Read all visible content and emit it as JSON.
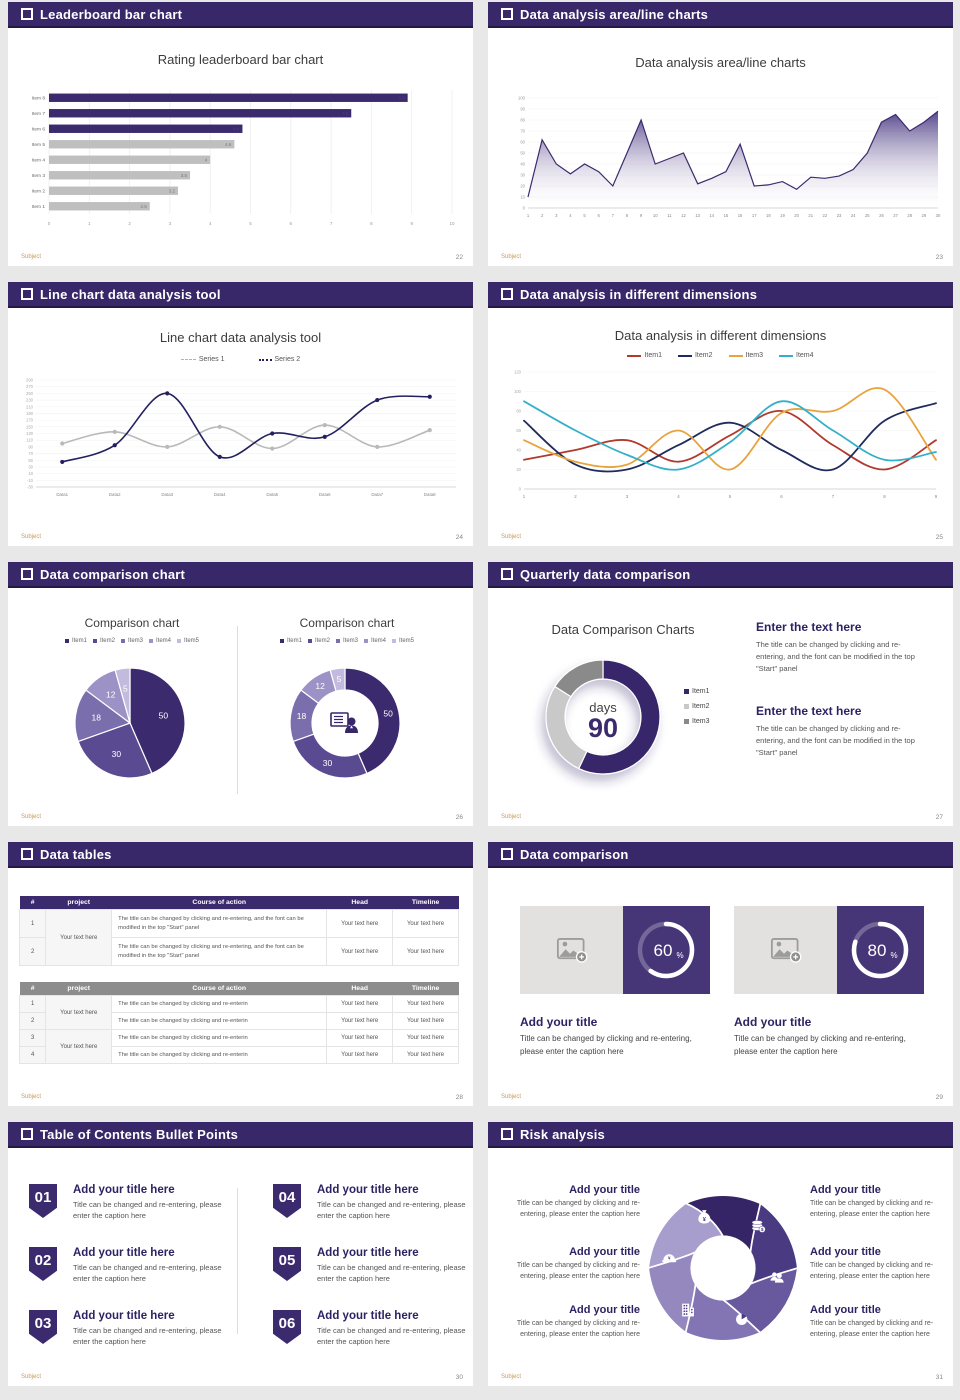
{
  "page": {
    "bg": "#e9e8e8",
    "accent": "#382769",
    "logo": "Subject"
  },
  "slides": [
    {
      "header": "Leaderboard bar chart",
      "page_num": "22",
      "title": "Rating leaderboard bar chart",
      "chart": {
        "type": "hbar",
        "categories": [
          "Item 1",
          "Item 2",
          "Item 3",
          "Item 4",
          "Item 5",
          "Item 6",
          "Item 7",
          "Item 8"
        ],
        "values": [
          2.5,
          3.2,
          3.5,
          4,
          4.6,
          4.8,
          7.5,
          8.9
        ],
        "bar_colors": [
          "#bfbfbf",
          "#bfbfbf",
          "#bfbfbf",
          "#bfbfbf",
          "#bfbfbf",
          "#3b2a6e",
          "#3b2a6e",
          "#3b2a6e"
        ],
        "xlim": [
          0,
          10
        ],
        "xticks": [
          0,
          1,
          2,
          3,
          4,
          5,
          6,
          7,
          8,
          9,
          10
        ]
      }
    },
    {
      "header": "Data analysis area/line charts",
      "page_num": "23",
      "title": "Data analysis area/line charts",
      "chart": {
        "type": "area",
        "x": [
          1,
          2,
          3,
          4,
          5,
          6,
          7,
          8,
          9,
          10,
          11,
          12,
          13,
          14,
          15,
          16,
          17,
          18,
          19,
          20,
          21,
          22,
          23,
          24,
          25,
          26,
          27,
          28,
          29,
          30
        ],
        "values": [
          10,
          62,
          40,
          31,
          40,
          33,
          20,
          50,
          80,
          40,
          45,
          50,
          22,
          27,
          33,
          58,
          20,
          21,
          24,
          17,
          28,
          27,
          29,
          35,
          50,
          78,
          85,
          70,
          78,
          88
        ],
        "ylim": [
          0,
          100
        ],
        "yticks": [
          0,
          10,
          20,
          30,
          40,
          50,
          60,
          70,
          80,
          90,
          100
        ],
        "line_color": "#3b2a6e"
      }
    },
    {
      "header": "Line chart data analysis tool",
      "page_num": "24",
      "title": "Line chart data analysis tool",
      "legend": [
        {
          "label": "Series 1"
        },
        {
          "label": "Series 2"
        }
      ],
      "chart": {
        "type": "line",
        "categories": [
          "Data1",
          "Data2",
          "Data3",
          "Data4",
          "Data5",
          "Data6",
          "Data7",
          "Data8"
        ],
        "ylim": [
          -30,
          290
        ],
        "yticks": [
          290,
          270,
          250,
          230,
          210,
          190,
          170,
          150,
          130,
          110,
          90,
          70,
          50,
          30,
          10,
          -10,
          -30
        ],
        "series": [
          {
            "name": "Series 1",
            "color": "#b9b9b9",
            "values": [
              100,
              135,
              90,
              150,
              85,
              155,
              90,
              140
            ]
          },
          {
            "name": "Series 2",
            "color": "#23205f",
            "values": [
              45,
              95,
              250,
              60,
              130,
              120,
              230,
              240
            ]
          }
        ]
      }
    },
    {
      "header": "Data analysis in different dimensions",
      "page_num": "25",
      "title": "Data analysis in different dimensions",
      "chart": {
        "type": "line",
        "categories": [
          "1",
          "2",
          "3",
          "4",
          "5",
          "6",
          "7",
          "8",
          "9"
        ],
        "ylim": [
          0,
          120
        ],
        "yticks": [
          0,
          20,
          40,
          60,
          80,
          100,
          120
        ],
        "series": [
          {
            "name": "Item1",
            "color": "#b03a2e",
            "values": [
              30,
              40,
              50,
              28,
              55,
              80,
              45,
              20,
              50
            ]
          },
          {
            "name": "Item2",
            "color": "#1f2a5e",
            "values": [
              70,
              25,
              20,
              45,
              68,
              40,
              20,
              70,
              88
            ]
          },
          {
            "name": "Item3",
            "color": "#e8a33d",
            "values": [
              50,
              28,
              25,
              60,
              20,
              78,
              80,
              102,
              30
            ]
          },
          {
            "name": "Item4",
            "color": "#35b0c9",
            "values": [
              90,
              60,
              35,
              20,
              48,
              90,
              60,
              30,
              38
            ]
          }
        ]
      }
    },
    {
      "header": "Data comparison chart",
      "page_num": "26",
      "panel_title_left": "Comparison chart",
      "panel_title_right": "Comparison chart",
      "legend": [
        "Item1",
        "Item2",
        "Item3",
        "Item4",
        "Item5"
      ],
      "chart": {
        "type": "pie",
        "labels": [
          "Item1",
          "Item2",
          "Item3",
          "Item4",
          "Item5"
        ],
        "values": [
          50,
          30,
          18,
          12,
          5
        ],
        "colors": [
          "#3b2a6e",
          "#5a4a91",
          "#7b6ead",
          "#9c92c6",
          "#c2bbdd"
        ]
      }
    },
    {
      "header": "Quarterly data comparison",
      "page_num": "27",
      "title": "Data Comparison Charts",
      "donut": {
        "type": "donut",
        "center_label": "days",
        "center_value": "90",
        "labels": [
          "Item1",
          "Item2",
          "Item3"
        ],
        "values": [
          57,
          27,
          16
        ],
        "colors": [
          "#38266b",
          "#c9c9c9",
          "#8a8a8a"
        ]
      },
      "blocks": [
        {
          "heading": "Enter the text here",
          "body": "The title can be changed by clicking and re-entering, and the font can be modified in the top \"Start\" panel"
        },
        {
          "heading": "Enter the text here",
          "body": "The title can be changed by clicking and re-entering, and the font can be modified in the top \"Start\" panel"
        }
      ]
    },
    {
      "header": "Data tables",
      "page_num": "28",
      "table1": {
        "columns": [
          "#",
          "project",
          "Course of action",
          "Head",
          "Timeline"
        ],
        "project": "Your text here",
        "rows": [
          {
            "num": "1",
            "course": "The title can be changed by clicking and re-entering, and the font can be modified in the top \"Start\" panel",
            "head": "Your text here",
            "timeline": "Your text here"
          },
          {
            "num": "2",
            "course": "The title can be changed by clicking and re-entering, and the font can be modified in the top \"Start\" panel",
            "head": "Your text here",
            "timeline": "Your text here"
          }
        ]
      },
      "table2": {
        "columns": [
          "#",
          "project",
          "Course of action",
          "Head",
          "Timeline"
        ],
        "projects": [
          "Your text here",
          "Your text here"
        ],
        "rows": [
          {
            "num": "1",
            "course": "The title can be changed by clicking and re-enterin",
            "head": "Your text here",
            "timeline": "Your text here"
          },
          {
            "num": "2",
            "course": "The title can be changed by clicking and re-enterin",
            "head": "Your text here",
            "timeline": "Your text here"
          },
          {
            "num": "3",
            "course": "The title can be changed by clicking and re-enterin",
            "head": "Your text here",
            "timeline": "Your text here"
          },
          {
            "num": "4",
            "course": "The title can be changed by clicking and re-enterin",
            "head": "Your text here",
            "timeline": "Your text here"
          }
        ]
      }
    },
    {
      "header": "Data comparison",
      "page_num": "29",
      "cards": [
        {
          "percent": "60",
          "suffix": "%",
          "title": "Add your title",
          "caption": "Title can be changed by clicking and re-entering, please enter the caption here"
        },
        {
          "percent": "80",
          "suffix": "%",
          "title": "Add your title",
          "caption": "Title can be changed by clicking and re-entering, please enter the caption here"
        }
      ]
    },
    {
      "header": "Table of Contents Bullet Points",
      "page_num": "30",
      "items": [
        {
          "num": "01",
          "title": "Add your title here",
          "caption": "Title can be changed and re-entering, please enter the caption here"
        },
        {
          "num": "02",
          "title": "Add your title here",
          "caption": "Title can be changed and re-entering, please enter the caption here"
        },
        {
          "num": "03",
          "title": "Add your title here",
          "caption": "Title can be changed and re-entering, please enter the caption here"
        },
        {
          "num": "04",
          "title": "Add your title here",
          "caption": "Title can be changed and re-entering, please enter the caption here"
        },
        {
          "num": "05",
          "title": "Add your title here",
          "caption": "Title can be changed and re-entering, please enter the caption here"
        },
        {
          "num": "06",
          "title": "Add your title here",
          "caption": "Title can be changed and re-entering, please enter the caption here"
        }
      ]
    },
    {
      "header": "Risk analysis",
      "page_num": "31",
      "blocks": [
        {
          "title": "Add your title",
          "caption": "Title can be changed by clicking and re-entering, please enter the caption here"
        },
        {
          "title": "Add your title",
          "caption": "Title can be changed by clicking and re-entering, please enter the caption here"
        },
        {
          "title": "Add your title",
          "caption": "Title can be changed by clicking and re-entering, please enter the caption here"
        },
        {
          "title": "Add your title",
          "caption": "Title can be changed by clicking and re-entering, please enter the caption here"
        },
        {
          "title": "Add your title",
          "caption": "Title can be changed by clicking and re-entering, please enter the caption here"
        },
        {
          "title": "Add your title",
          "caption": "Title can be changed by clicking and re-entering, please enter the caption here"
        }
      ],
      "icons": [
        "money-bag-icon",
        "coins-icon",
        "people-icon",
        "pie-chart-icon",
        "building-icon",
        "helmet-icon"
      ],
      "wheel_colors": [
        "#362566",
        "#4a3a82",
        "#68599f",
        "#8375b4",
        "#9488bf",
        "#a89ecd"
      ]
    }
  ]
}
